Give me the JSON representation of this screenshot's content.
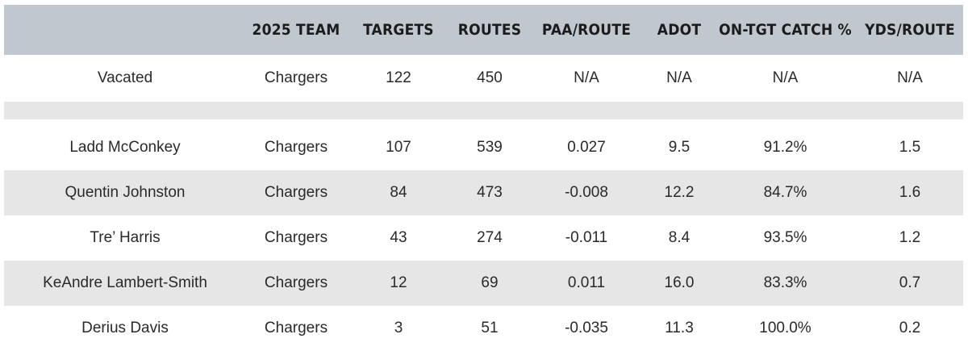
{
  "headers": [
    "",
    "2025 TEAM",
    "TARGETS",
    "ROUTES",
    "PAA/ROUTE",
    "ADOT",
    "ON-TGT CATCH %",
    "YDS/ROUTE"
  ],
  "vacated": [
    "Vacated",
    "Chargers",
    "122",
    "450",
    "N/A",
    "N/A",
    "N/A",
    "N/A"
  ],
  "rows": [
    [
      "Ladd McConkey",
      "Chargers",
      "107",
      "539",
      "0.027",
      "9.5",
      "91.2%",
      "1.5"
    ],
    [
      "Quentin Johnston",
      "Chargers",
      "84",
      "473",
      "-0.008",
      "12.2",
      "84.7%",
      "1.6"
    ],
    [
      "Tre’ Harris",
      "Chargers",
      "43",
      "274",
      "-0.011",
      "8.4",
      "93.5%",
      "1.2"
    ],
    [
      "KeAndre Lambert-Smith",
      "Chargers",
      "12",
      "69",
      "0.011",
      "16.0",
      "83.3%",
      "0.7"
    ],
    [
      "Derius Davis",
      "Chargers",
      "3",
      "51",
      "-0.035",
      "11.3",
      "100.0%",
      "0.2"
    ]
  ]
}
